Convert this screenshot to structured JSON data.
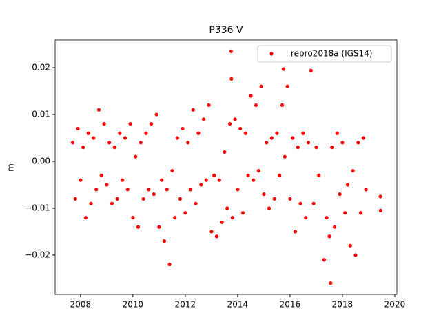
{
  "chart_data": {
    "type": "scatter",
    "title": "P336 V",
    "y_label": "m",
    "x": [
      2007.7,
      2007.8,
      2007.9,
      2008.0,
      2008.1,
      2008.2,
      2008.3,
      2008.4,
      2008.5,
      2008.6,
      2008.7,
      2008.8,
      2008.9,
      2009.0,
      2009.1,
      2009.2,
      2009.3,
      2009.4,
      2009.5,
      2009.6,
      2009.7,
      2009.8,
      2009.9,
      2010.0,
      2010.1,
      2010.2,
      2010.3,
      2010.4,
      2010.5,
      2010.6,
      2010.7,
      2010.8,
      2010.9,
      2011.0,
      2011.1,
      2011.2,
      2011.3,
      2011.4,
      2011.5,
      2011.6,
      2011.7,
      2011.8,
      2011.9,
      2012.0,
      2012.1,
      2012.2,
      2012.3,
      2012.4,
      2012.5,
      2012.6,
      2012.7,
      2012.8,
      2012.9,
      2013.0,
      2013.1,
      2013.2,
      2013.3,
      2013.4,
      2013.5,
      2013.6,
      2013.7,
      2013.75,
      2013.76,
      2013.8,
      2013.9,
      2014.0,
      2014.1,
      2014.2,
      2014.3,
      2014.4,
      2014.5,
      2014.6,
      2014.7,
      2014.8,
      2014.9,
      2015.0,
      2015.1,
      2015.2,
      2015.3,
      2015.4,
      2015.5,
      2015.6,
      2015.7,
      2015.75,
      2015.8,
      2015.9,
      2016.0,
      2016.1,
      2016.2,
      2016.3,
      2016.4,
      2016.5,
      2016.6,
      2016.7,
      2016.8,
      2016.9,
      2017.0,
      2017.1,
      2017.3,
      2017.4,
      2017.5,
      2017.55,
      2017.6,
      2017.7,
      2017.8,
      2017.9,
      2018.0,
      2018.1,
      2018.2,
      2018.3,
      2018.4,
      2018.5,
      2018.6,
      2018.7,
      2018.8,
      2018.9,
      2019.45,
      2019.46
    ],
    "series": [
      {
        "name": "repro2018a (IGS14)",
        "color": "#ff0000",
        "values": [
          0.004,
          -0.008,
          0.007,
          -0.004,
          0.003,
          -0.012,
          0.006,
          -0.009,
          0.005,
          -0.006,
          0.011,
          -0.003,
          0.008,
          -0.005,
          0.004,
          -0.009,
          0.003,
          -0.008,
          0.006,
          -0.004,
          0.005,
          -0.006,
          0.008,
          -0.012,
          0.001,
          -0.014,
          0.004,
          -0.008,
          0.006,
          -0.006,
          0.008,
          -0.007,
          0.01,
          -0.014,
          -0.004,
          -0.017,
          -0.006,
          -0.022,
          -0.002,
          -0.012,
          0.005,
          -0.008,
          0.007,
          -0.011,
          0.004,
          -0.006,
          0.011,
          -0.009,
          0.006,
          -0.005,
          0.009,
          -0.004,
          0.012,
          -0.015,
          -0.003,
          -0.016,
          -0.004,
          -0.013,
          0.002,
          -0.01,
          0.008,
          0.0235,
          0.0176,
          -0.012,
          0.009,
          -0.006,
          0.007,
          -0.011,
          0.006,
          -0.003,
          0.014,
          -0.004,
          0.012,
          -0.002,
          0.016,
          -0.007,
          0.004,
          -0.01,
          0.005,
          -0.008,
          0.006,
          -0.003,
          0.012,
          0.0197,
          0.001,
          0.016,
          -0.008,
          0.005,
          -0.015,
          0.003,
          -0.009,
          0.006,
          -0.012,
          0.004,
          0.0194,
          -0.009,
          0.003,
          -0.003,
          -0.021,
          -0.012,
          -0.016,
          -0.026,
          0.003,
          -0.014,
          0.006,
          -0.007,
          0.004,
          -0.011,
          -0.005,
          -0.018,
          -0.002,
          -0.02,
          0.004,
          -0.011,
          0.005,
          -0.006,
          -0.0075,
          -0.0105
        ]
      }
    ],
    "xlim": [
      2007.03,
      2020.08
    ],
    "ylim": [
      -0.0284,
      0.0259
    ],
    "xticks": [
      2008,
      2010,
      2012,
      2014,
      2016,
      2018,
      2020
    ],
    "yticks": [
      {
        "value": -0.02,
        "label": "−0.02"
      },
      {
        "value": -0.01,
        "label": "−0.01"
      },
      {
        "value": 0,
        "label": "0.00"
      },
      0.01,
      0.02
    ],
    "legend": "upper right"
  }
}
